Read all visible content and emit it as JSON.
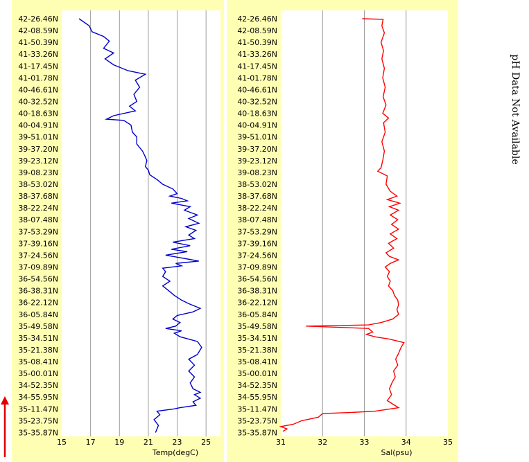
{
  "colors": {
    "panel_background": "#ffffb4",
    "plot_background": "#ffffff",
    "gridline": "#9a9a9a",
    "temp_series": "#0000cc",
    "sal_series": "#ff0000",
    "direction_arrow": "#e00000"
  },
  "side_note": "pH Data Not Available",
  "chart_data": [
    {
      "type": "line",
      "orientation": "vertical-profile",
      "xlabel": "Temp(degC)",
      "xlim": [
        15,
        26
      ],
      "xticks": [
        15,
        17,
        19,
        21,
        23,
        25
      ],
      "grid": true,
      "ytick_labels": [
        "42-26.46N",
        "42-08.59N",
        "41-50.39N",
        "41-33.26N",
        "41-17.45N",
        "41-01.78N",
        "40-46.61N",
        "40-32.52N",
        "40-18.63N",
        "40-04.91N",
        "39-51.01N",
        "39-37.20N",
        "39-23.12N",
        "39-08.23N",
        "38-53.02N",
        "38-37.68N",
        "38-22.24N",
        "38-07.48N",
        "37-53.29N",
        "37-39.16N",
        "37-24.56N",
        "37-09.89N",
        "36-54.56N",
        "36-38.31N",
        "36-22.12N",
        "36-05.84N",
        "35-49.58N",
        "35-34.51N",
        "35-21.38N",
        "35-08.41N",
        "35-00.01N",
        "34-52.35N",
        "34-55.95N",
        "35-11.47N",
        "35-23.75N",
        "35-35.87N"
      ],
      "series": [
        {
          "values": [
            [
              16.2,
              0.0
            ],
            [
              16.9,
              0.6
            ],
            [
              17.1,
              1.1
            ],
            [
              17.9,
              1.5
            ],
            [
              18.3,
              1.9
            ],
            [
              17.9,
              2.5
            ],
            [
              18.6,
              2.9
            ],
            [
              18.0,
              3.4
            ],
            [
              18.6,
              3.9
            ],
            [
              19.6,
              4.4
            ],
            [
              20.8,
              4.7
            ],
            [
              20.1,
              5.2
            ],
            [
              20.4,
              5.8
            ],
            [
              20.0,
              6.4
            ],
            [
              20.2,
              7.0
            ],
            [
              19.7,
              7.4
            ],
            [
              20.1,
              7.8
            ],
            [
              18.6,
              8.2
            ],
            [
              18.1,
              8.5
            ],
            [
              19.3,
              8.6
            ],
            [
              19.8,
              9.0
            ],
            [
              19.9,
              9.6
            ],
            [
              20.2,
              10.0
            ],
            [
              20.2,
              10.6
            ],
            [
              20.6,
              11.2
            ],
            [
              20.8,
              11.7
            ],
            [
              20.9,
              12.0
            ],
            [
              20.8,
              12.5
            ],
            [
              21.0,
              12.8
            ],
            [
              21.1,
              13.2
            ],
            [
              21.6,
              13.6
            ],
            [
              22.0,
              14.0
            ],
            [
              22.7,
              14.4
            ],
            [
              23.0,
              14.8
            ],
            [
              22.5,
              15.0
            ],
            [
              23.3,
              15.2
            ],
            [
              23.7,
              15.4
            ],
            [
              22.6,
              15.6
            ],
            [
              23.9,
              15.9
            ],
            [
              23.5,
              16.2
            ],
            [
              24.4,
              16.6
            ],
            [
              23.8,
              16.9
            ],
            [
              24.5,
              17.3
            ],
            [
              23.6,
              17.6
            ],
            [
              24.3,
              17.9
            ],
            [
              23.8,
              18.3
            ],
            [
              24.2,
              18.6
            ],
            [
              22.7,
              18.9
            ],
            [
              23.9,
              19.2
            ],
            [
              22.6,
              19.5
            ],
            [
              23.7,
              19.7
            ],
            [
              22.2,
              20.0
            ],
            [
              23.6,
              20.3
            ],
            [
              24.5,
              20.5
            ],
            [
              22.9,
              20.7
            ],
            [
              23.3,
              20.9
            ],
            [
              22.0,
              21.1
            ],
            [
              22.2,
              21.4
            ],
            [
              22.0,
              21.8
            ],
            [
              22.5,
              22.2
            ],
            [
              22.0,
              22.6
            ],
            [
              22.4,
              23.0
            ],
            [
              22.8,
              23.4
            ],
            [
              23.3,
              23.8
            ],
            [
              23.8,
              24.1
            ],
            [
              24.6,
              24.5
            ],
            [
              24.1,
              24.8
            ],
            [
              23.0,
              25.1
            ],
            [
              22.7,
              25.4
            ],
            [
              23.2,
              25.7
            ],
            [
              22.9,
              26.0
            ],
            [
              22.2,
              26.2
            ],
            [
              23.3,
              26.4
            ],
            [
              22.8,
              26.6
            ],
            [
              23.2,
              26.9
            ],
            [
              24.4,
              27.3
            ],
            [
              24.7,
              27.8
            ],
            [
              24.4,
              28.4
            ],
            [
              23.8,
              28.8
            ],
            [
              24.2,
              29.3
            ],
            [
              23.8,
              29.8
            ],
            [
              24.2,
              30.3
            ],
            [
              23.9,
              30.8
            ],
            [
              24.1,
              31.3
            ],
            [
              24.6,
              31.6
            ],
            [
              24.2,
              31.8
            ],
            [
              24.6,
              32.1
            ],
            [
              24.1,
              32.4
            ],
            [
              24.3,
              32.7
            ],
            [
              23.2,
              32.9
            ],
            [
              22.8,
              33.0
            ],
            [
              21.6,
              33.2
            ],
            [
              21.8,
              33.5
            ],
            [
              21.4,
              33.9
            ],
            [
              21.7,
              34.4
            ],
            [
              21.5,
              35.0
            ]
          ]
        }
      ]
    },
    {
      "type": "line",
      "orientation": "vertical-profile",
      "xlabel": "Sal(psu)",
      "xlim": [
        31,
        35
      ],
      "xticks": [
        31,
        32,
        33,
        34,
        35
      ],
      "grid": true,
      "ytick_labels": [
        "42-26.46N",
        "42-08.59N",
        "41-50.39N",
        "41-33.26N",
        "41-17.45N",
        "41-01.78N",
        "40-46.61N",
        "40-32.52N",
        "40-18.63N",
        "40-04.91N",
        "39-51.01N",
        "39-37.20N",
        "39-23.12N",
        "39-08.23N",
        "38-53.02N",
        "38-37.68N",
        "38-22.24N",
        "38-07.48N",
        "37-53.29N",
        "37-39.16N",
        "37-24.56N",
        "37-09.89N",
        "36-54.56N",
        "36-38.31N",
        "36-22.12N",
        "36-05.84N",
        "35-49.58N",
        "35-34.51N",
        "35-21.38N",
        "35-08.41N",
        "35-00.01N",
        "34-52.35N",
        "34-55.95N",
        "35-11.47N",
        "35-23.75N",
        "35-35.87N"
      ],
      "series": [
        {
          "values": [
            [
              32.95,
              0.0
            ],
            [
              33.45,
              0.05
            ],
            [
              33.42,
              0.6
            ],
            [
              33.48,
              1.2
            ],
            [
              33.4,
              2.0
            ],
            [
              33.46,
              2.7
            ],
            [
              33.42,
              3.4
            ],
            [
              33.48,
              4.2
            ],
            [
              33.44,
              5.0
            ],
            [
              33.5,
              5.8
            ],
            [
              33.45,
              6.6
            ],
            [
              33.52,
              7.3
            ],
            [
              33.44,
              8.0
            ],
            [
              33.58,
              8.4
            ],
            [
              33.46,
              8.8
            ],
            [
              33.5,
              9.6
            ],
            [
              33.42,
              10.4
            ],
            [
              33.48,
              11.2
            ],
            [
              33.44,
              12.0
            ],
            [
              33.4,
              12.6
            ],
            [
              33.32,
              12.9
            ],
            [
              33.55,
              13.3
            ],
            [
              33.52,
              14.0
            ],
            [
              33.62,
              14.6
            ],
            [
              33.78,
              15.0
            ],
            [
              33.55,
              15.3
            ],
            [
              33.85,
              15.6
            ],
            [
              33.6,
              15.9
            ],
            [
              33.82,
              16.2
            ],
            [
              33.62,
              16.6
            ],
            [
              33.8,
              17.0
            ],
            [
              33.65,
              17.4
            ],
            [
              33.82,
              17.8
            ],
            [
              33.62,
              18.2
            ],
            [
              33.78,
              18.6
            ],
            [
              33.58,
              19.0
            ],
            [
              33.7,
              19.4
            ],
            [
              33.52,
              19.8
            ],
            [
              33.6,
              20.1
            ],
            [
              33.82,
              20.4
            ],
            [
              33.62,
              20.7
            ],
            [
              33.5,
              21.0
            ],
            [
              33.6,
              21.4
            ],
            [
              33.55,
              21.8
            ],
            [
              33.62,
              22.2
            ],
            [
              33.58,
              22.6
            ],
            [
              33.68,
              23.0
            ],
            [
              33.72,
              23.4
            ],
            [
              33.8,
              23.8
            ],
            [
              33.82,
              24.2
            ],
            [
              33.78,
              24.6
            ],
            [
              33.82,
              25.0
            ],
            [
              33.68,
              25.4
            ],
            [
              33.4,
              25.7
            ],
            [
              33.1,
              25.9
            ],
            [
              31.6,
              26.0
            ],
            [
              33.1,
              26.2
            ],
            [
              33.2,
              26.5
            ],
            [
              33.05,
              26.7
            ],
            [
              33.25,
              26.9
            ],
            [
              33.6,
              27.1
            ],
            [
              33.95,
              27.4
            ],
            [
              33.88,
              27.8
            ],
            [
              33.82,
              28.3
            ],
            [
              33.75,
              28.8
            ],
            [
              33.8,
              29.3
            ],
            [
              33.7,
              29.8
            ],
            [
              33.74,
              30.3
            ],
            [
              33.66,
              30.8
            ],
            [
              33.6,
              31.3
            ],
            [
              33.65,
              31.8
            ],
            [
              33.55,
              32.3
            ],
            [
              33.82,
              32.9
            ],
            [
              33.25,
              33.2
            ],
            [
              32.7,
              33.3
            ],
            [
              32.0,
              33.4
            ],
            [
              31.9,
              33.7
            ],
            [
              31.5,
              34.0
            ],
            [
              31.3,
              34.3
            ],
            [
              31.0,
              34.5
            ],
            [
              31.15,
              34.7
            ],
            [
              31.05,
              34.9
            ]
          ]
        }
      ]
    }
  ]
}
